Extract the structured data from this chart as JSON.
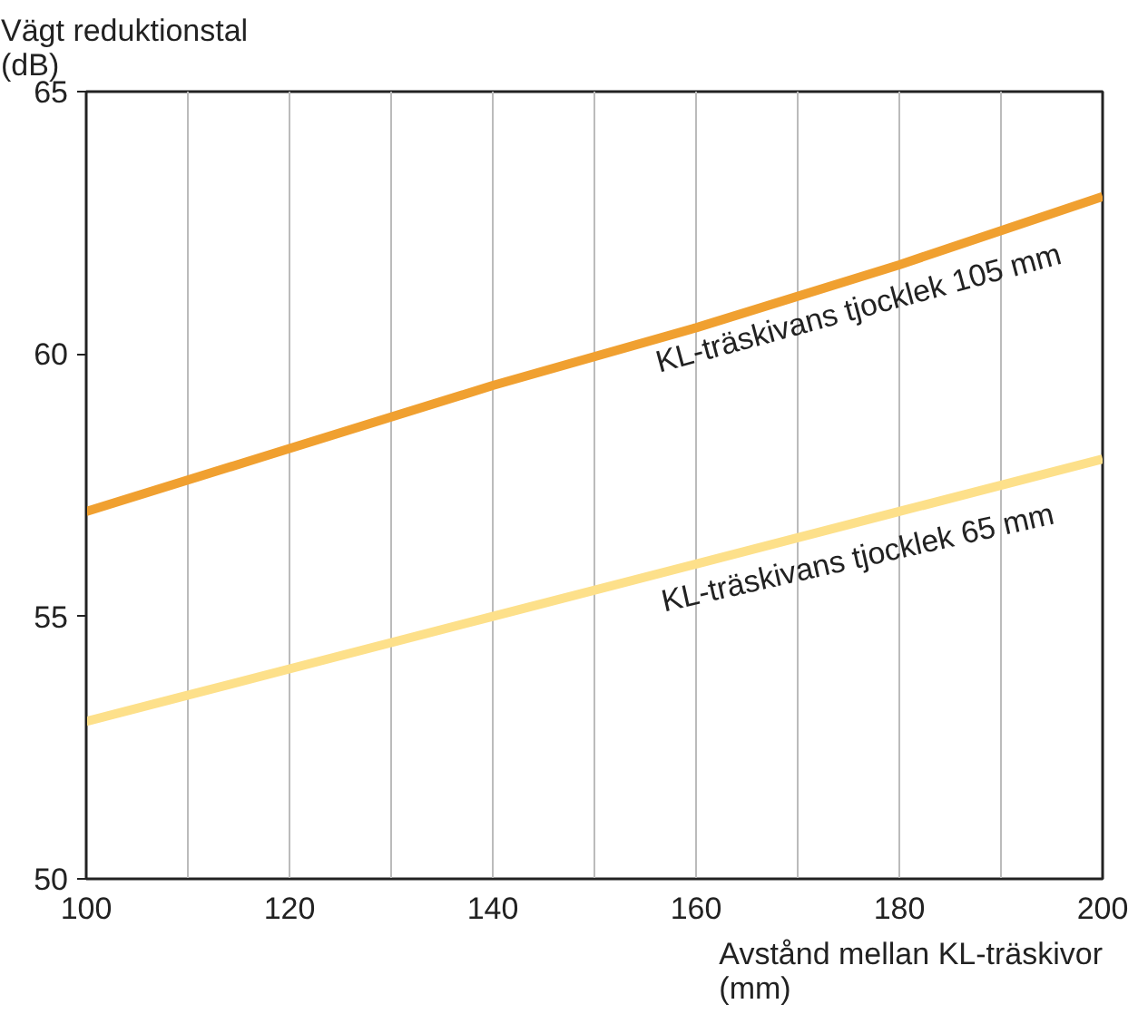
{
  "chart_data": {
    "type": "line",
    "xlabel": "Avstånd mellan KL-träskivor\n(mm)",
    "ylabel": "Vägt reduktionstal\n(dB)",
    "x": [
      100,
      120,
      140,
      160,
      180,
      200
    ],
    "series": [
      {
        "color": "#f0a030",
        "values": [
          57,
          58.2,
          59.4,
          60.5,
          61.7,
          63
        ]
      },
      {
        "color": "#fde08a",
        "values": [
          53,
          54,
          55,
          56,
          57,
          58
        ]
      }
    ],
    "xlim": [
      100,
      200
    ],
    "ylim": [
      50,
      65
    ],
    "xticks": [
      100,
      {
        "value": 110,
        "label": null
      },
      120,
      {
        "value": 130,
        "label": null
      },
      140,
      {
        "value": 150,
        "label": null
      },
      160,
      {
        "value": 170,
        "label": null
      },
      180,
      {
        "value": 190,
        "label": null
      },
      200
    ],
    "yticks": [
      50,
      55,
      60,
      65
    ],
    "grid": "x",
    "line_style": "solid",
    "annotations": [
      "KL-träskivans tjocklek 105 mm",
      "KL-träskivans tjocklek 65 mm"
    ]
  }
}
